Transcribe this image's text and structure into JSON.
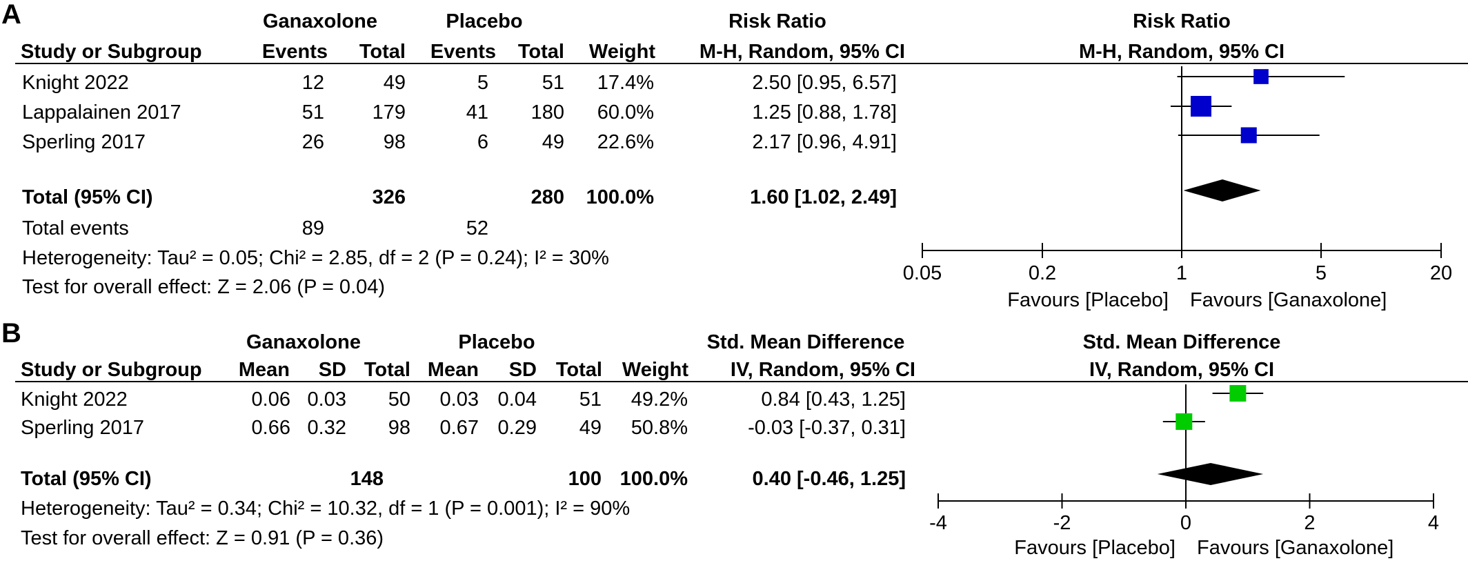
{
  "colors": {
    "panel_a_marker": "#0000cc",
    "panel_b_marker": "#00cc00",
    "diamond": "#000000",
    "text": "#000000"
  },
  "panel_a": {
    "label": "A",
    "group1_header": "Ganaxolone",
    "group2_header": "Placebo",
    "effect_header_top": "Risk Ratio",
    "effect_header": "M-H, Random, 95% CI",
    "plot_header_top": "Risk Ratio",
    "plot_header": "M-H, Random, 95% CI",
    "columns": [
      "Study or Subgroup",
      "Events",
      "Total",
      "Events",
      "Total",
      "Weight",
      "M-H, Random, 95% CI"
    ],
    "rows": [
      {
        "study": "Knight 2022",
        "e1": "12",
        "t1": "49",
        "e2": "5",
        "t2": "51",
        "weight": "17.4%",
        "ci": "2.50 [0.95, 6.57]"
      },
      {
        "study": "Lappalainen 2017",
        "e1": "51",
        "t1": "179",
        "e2": "41",
        "t2": "180",
        "weight": "60.0%",
        "ci": "1.25 [0.88, 1.78]"
      },
      {
        "study": "Sperling 2017",
        "e1": "26",
        "t1": "98",
        "e2": "6",
        "t2": "49",
        "weight": "22.6%",
        "ci": "2.17 [0.96, 4.91]"
      }
    ],
    "total": {
      "label": "Total (95% CI)",
      "t1": "326",
      "t2": "280",
      "weight": "100.0%",
      "ci": "1.60 [1.02, 2.49]"
    },
    "total_events": {
      "label": "Total events",
      "e1": "89",
      "e2": "52"
    },
    "heterogeneity": "Heterogeneity: Tau² = 0.05; Chi² = 2.85, df = 2 (P = 0.24); I² = 30%",
    "overall_effect": "Test for overall effect: Z = 2.06 (P = 0.04)",
    "favours_left": "Favours [Placebo]",
    "favours_right": "Favours [Ganaxolone]"
  },
  "panel_b": {
    "label": "B",
    "group1_header": "Ganaxolone",
    "group2_header": "Placebo",
    "effect_header_top": "Std. Mean Difference",
    "effect_header": "IV, Random, 95% CI",
    "plot_header_top": "Std. Mean Difference",
    "plot_header": "IV, Random, 95% CI",
    "columns": [
      "Study or Subgroup",
      "Mean",
      "SD",
      "Total",
      "Mean",
      "SD",
      "Total",
      "Weight",
      "IV, Random, 95% CI"
    ],
    "rows": [
      {
        "study": "Knight 2022",
        "m1": "0.06",
        "sd1": "0.03",
        "t1": "50",
        "m2": "0.03",
        "sd2": "0.04",
        "t2": "51",
        "weight": "49.2%",
        "ci": "0.84 [0.43, 1.25]"
      },
      {
        "study": "Sperling 2017",
        "m1": "0.66",
        "sd1": "0.32",
        "t1": "98",
        "m2": "0.67",
        "sd2": "0.29",
        "t2": "49",
        "weight": "50.8%",
        "ci": "-0.03 [-0.37, 0.31]"
      }
    ],
    "total": {
      "label": "Total (95% CI)",
      "t1": "148",
      "t2": "100",
      "weight": "100.0%",
      "ci": "0.40 [-0.46, 1.25]"
    },
    "heterogeneity": "Heterogeneity: Tau² = 0.34; Chi² = 10.32, df = 1 (P = 0.001); I² = 90%",
    "overall_effect": "Test for overall effect: Z = 0.91 (P = 0.36)",
    "favours_left": "Favours [Placebo]",
    "favours_right": "Favours [Ganaxolone]"
  },
  "chart_data": [
    {
      "type": "forest",
      "panel": "A",
      "scale": "log",
      "xlim": [
        0.05,
        20
      ],
      "ticks": [
        0.05,
        0.2,
        1,
        5,
        20
      ],
      "tick_labels": [
        "0.05",
        "0.2",
        "1",
        "5",
        "20"
      ],
      "null_value": 1,
      "studies": [
        {
          "name": "Knight 2022",
          "estimate": 2.5,
          "lower": 0.95,
          "upper": 6.57,
          "weight": 17.4
        },
        {
          "name": "Lappalainen 2017",
          "estimate": 1.25,
          "lower": 0.88,
          "upper": 1.78,
          "weight": 60.0
        },
        {
          "name": "Sperling 2017",
          "estimate": 2.17,
          "lower": 0.96,
          "upper": 4.91,
          "weight": 22.6
        }
      ],
      "pooled": {
        "estimate": 1.6,
        "lower": 1.02,
        "upper": 2.49
      }
    },
    {
      "type": "forest",
      "panel": "B",
      "scale": "linear",
      "xlim": [
        -4,
        4
      ],
      "ticks": [
        -4,
        -2,
        0,
        2,
        4
      ],
      "tick_labels": [
        "-4",
        "-2",
        "0",
        "2",
        "4"
      ],
      "null_value": 0,
      "studies": [
        {
          "name": "Knight 2022",
          "estimate": 0.84,
          "lower": 0.43,
          "upper": 1.25,
          "weight": 49.2
        },
        {
          "name": "Sperling 2017",
          "estimate": -0.03,
          "lower": -0.37,
          "upper": 0.31,
          "weight": 50.8
        }
      ],
      "pooled": {
        "estimate": 0.4,
        "lower": -0.46,
        "upper": 1.25
      }
    }
  ]
}
